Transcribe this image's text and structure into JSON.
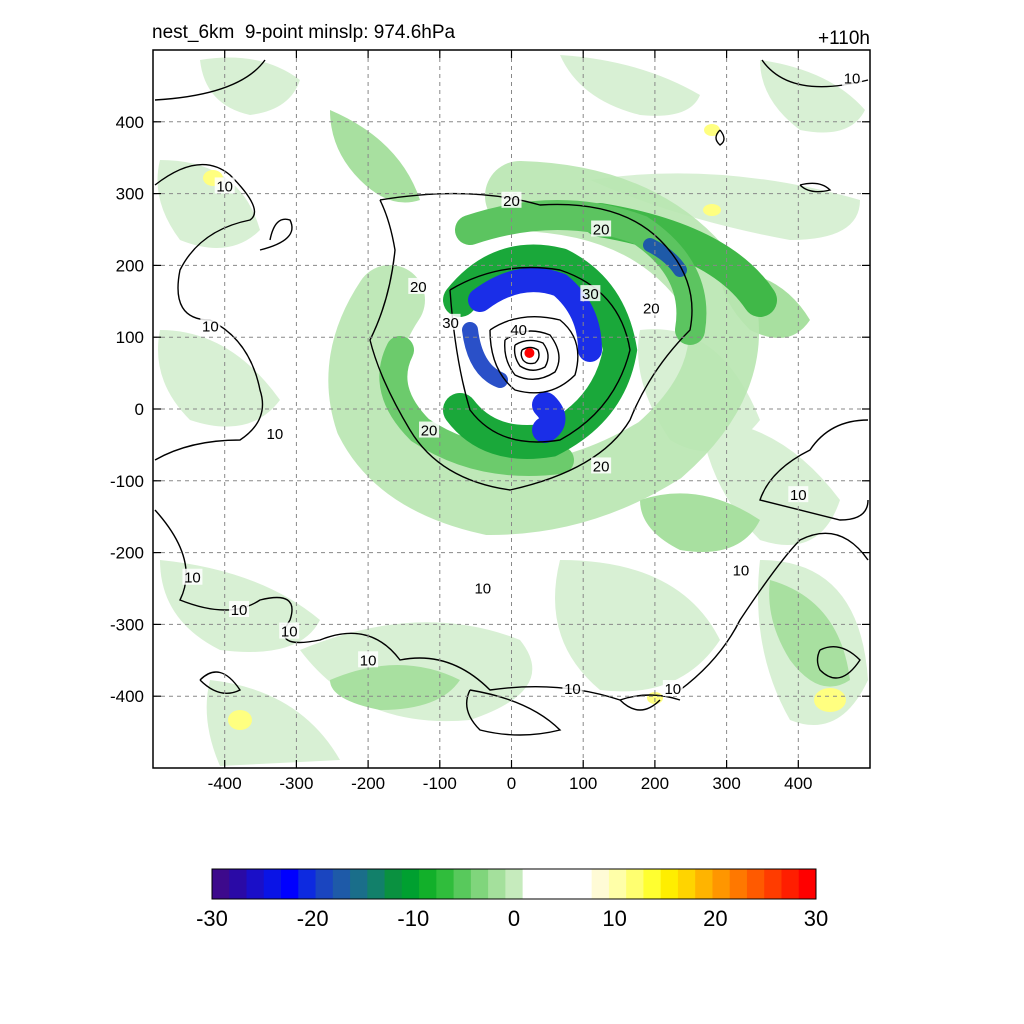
{
  "chart_data": {
    "type": "contour",
    "title_left": "nest_6km  9-point minslp: 974.6hPa",
    "title_right": "+110h",
    "xlim": [
      -500,
      500
    ],
    "ylim": [
      -500,
      500
    ],
    "x_ticks": [
      -400,
      -300,
      -200,
      -100,
      0,
      100,
      200,
      300,
      400
    ],
    "y_ticks": [
      400,
      300,
      200,
      100,
      0,
      -100,
      -200,
      -300,
      -400
    ],
    "grid": true,
    "center_marker": {
      "x": 25,
      "y": 78,
      "color": "#ff0000"
    },
    "contour_line_labels": [
      {
        "text": "10",
        "x": 475,
        "y": 460
      },
      {
        "text": "10",
        "x": -400,
        "y": 310
      },
      {
        "text": "10",
        "x": -420,
        "y": 115
      },
      {
        "text": "10",
        "x": -330,
        "y": -35
      },
      {
        "text": "10",
        "x": 400,
        "y": -120
      },
      {
        "text": "10",
        "x": -445,
        "y": -235
      },
      {
        "text": "10",
        "x": -380,
        "y": -280
      },
      {
        "text": "10",
        "x": -310,
        "y": -310
      },
      {
        "text": "10",
        "x": 320,
        "y": -225
      },
      {
        "text": "10",
        "x": -40,
        "y": -250
      },
      {
        "text": "10",
        "x": -200,
        "y": -350
      },
      {
        "text": "10",
        "x": 85,
        "y": -390
      },
      {
        "text": "10",
        "x": 225,
        "y": -390
      },
      {
        "text": "20",
        "x": 0,
        "y": 290
      },
      {
        "text": "20",
        "x": 125,
        "y": 250
      },
      {
        "text": "20",
        "x": -130,
        "y": 170
      },
      {
        "text": "20",
        "x": 195,
        "y": 140
      },
      {
        "text": "20",
        "x": -115,
        "y": -30
      },
      {
        "text": "20",
        "x": 125,
        "y": -80
      },
      {
        "text": "30",
        "x": -85,
        "y": 120
      },
      {
        "text": "30",
        "x": 110,
        "y": 160
      },
      {
        "text": "40",
        "x": 10,
        "y": 110
      }
    ],
    "colorbar": {
      "ticks": [
        -30,
        -20,
        -10,
        0,
        10,
        20,
        30
      ],
      "range": [
        -30,
        30
      ],
      "colors": [
        "#3d0a8c",
        "#2a0aa6",
        "#1a0fc8",
        "#0a14e6",
        "#0000ff",
        "#0d2ae0",
        "#1a45c0",
        "#1e5aa8",
        "#1a6e8a",
        "#12806a",
        "#0a9140",
        "#00a030",
        "#12b02a",
        "#30bd3c",
        "#58c95c",
        "#80d57c",
        "#a4e09c",
        "#c6ebbd",
        "#ffffff",
        "#ffffff",
        "#ffffff",
        "#ffffff",
        "#fffbd6",
        "#ffffa8",
        "#ffff70",
        "#ffff30",
        "#ffee00",
        "#ffd400",
        "#ffb400",
        "#ff9600",
        "#ff7800",
        "#ff5a00",
        "#ff3c00",
        "#ff1e00",
        "#ff0000"
      ]
    }
  }
}
